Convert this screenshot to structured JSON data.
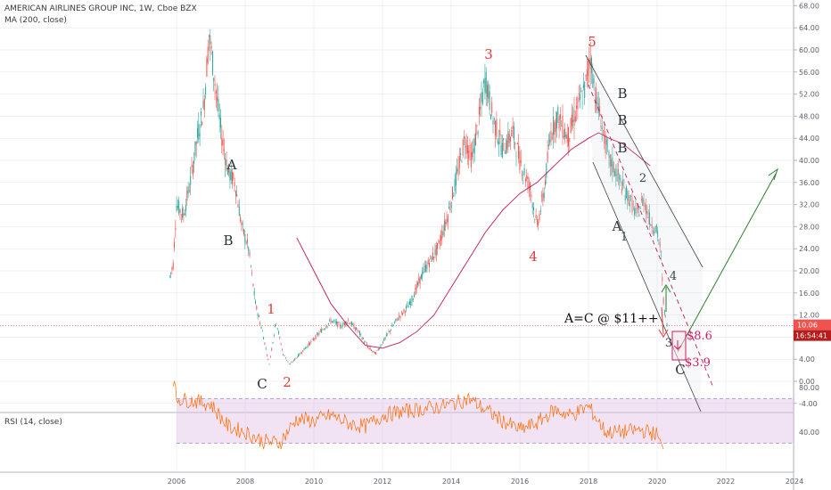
{
  "header": {
    "title": "AMERICAN AIRLINES GROUP INC, 1W, Cboe BZX",
    "indicator": "MA (200, close)",
    "rsi": "RSI (14, close)"
  },
  "price_tag": {
    "value": "10.06",
    "countdown": "16:54:41"
  },
  "colors": {
    "up": "#26a69a",
    "down": "#ef5350",
    "ma": "#c2185b",
    "rsi": "#ff6d00",
    "rsi_band": "#e1bee7",
    "wave_red": "#e53935",
    "wave_dark": "#263238",
    "projection": "#2e7d32",
    "target": "#d81b60",
    "grid": "#e0e3eb"
  },
  "chart_data": [
    {
      "type": "candlestick",
      "title": "AMERICAN AIRLINES GROUP INC, 1W, Cboe BZX",
      "x_ticks": [
        "2006",
        "2008",
        "2010",
        "2012",
        "2014",
        "2016",
        "2018",
        "2020",
        "2022",
        "2024"
      ],
      "y_ticks": [
        "68.00",
        "64.00",
        "60.00",
        "56.00",
        "52.00",
        "48.00",
        "44.00",
        "40.00",
        "36.00",
        "32.00",
        "28.00",
        "24.00",
        "20.00",
        "16.00",
        "12.00",
        "8.00",
        "4.00",
        "0.00",
        "-4.00"
      ],
      "ylim": [
        -6,
        70
      ],
      "price_path": [
        [
          2005.8,
          19
        ],
        [
          2005.9,
          21
        ],
        [
          2006.0,
          32
        ],
        [
          2006.2,
          30
        ],
        [
          2006.4,
          36
        ],
        [
          2006.6,
          44
        ],
        [
          2006.8,
          50
        ],
        [
          2006.95,
          63
        ],
        [
          2007.1,
          55
        ],
        [
          2007.3,
          45
        ],
        [
          2007.5,
          38
        ],
        [
          2007.7,
          36
        ],
        [
          2007.9,
          28
        ],
        [
          2008.1,
          24
        ],
        [
          2008.3,
          14
        ],
        [
          2008.5,
          9
        ],
        [
          2008.7,
          3
        ],
        [
          2008.8,
          7
        ],
        [
          2008.9,
          11
        ],
        [
          2009.1,
          5
        ],
        [
          2009.3,
          3
        ],
        [
          2009.6,
          5
        ],
        [
          2009.9,
          7
        ],
        [
          2010.2,
          9
        ],
        [
          2010.5,
          11
        ],
        [
          2010.8,
          10
        ],
        [
          2011.0,
          11
        ],
        [
          2011.3,
          9
        ],
        [
          2011.6,
          6
        ],
        [
          2011.8,
          5
        ],
        [
          2012.0,
          7
        ],
        [
          2012.4,
          11
        ],
        [
          2012.8,
          14
        ],
        [
          2013.2,
          20
        ],
        [
          2013.6,
          24
        ],
        [
          2013.9,
          30
        ],
        [
          2014.2,
          38
        ],
        [
          2014.4,
          44
        ],
        [
          2014.6,
          40
        ],
        [
          2014.8,
          47
        ],
        [
          2015.0,
          55
        ],
        [
          2015.2,
          48
        ],
        [
          2015.5,
          42
        ],
        [
          2015.8,
          45
        ],
        [
          2016.0,
          40
        ],
        [
          2016.3,
          35
        ],
        [
          2016.5,
          28
        ],
        [
          2016.7,
          34
        ],
        [
          2016.9,
          45
        ],
        [
          2017.1,
          48
        ],
        [
          2017.4,
          44
        ],
        [
          2017.7,
          50
        ],
        [
          2017.9,
          53
        ],
        [
          2018.05,
          59
        ],
        [
          2018.2,
          52
        ],
        [
          2018.4,
          46
        ],
        [
          2018.6,
          40
        ],
        [
          2018.8,
          38
        ],
        [
          2019.0,
          35
        ],
        [
          2019.2,
          33
        ],
        [
          2019.4,
          30
        ],
        [
          2019.6,
          33
        ],
        [
          2019.8,
          29
        ],
        [
          2020.0,
          27
        ],
        [
          2020.1,
          24
        ],
        [
          2020.2,
          13
        ],
        [
          2020.3,
          10
        ]
      ],
      "rsi_path": [
        [
          2005.9,
          88
        ],
        [
          2006.0,
          70
        ],
        [
          2006.5,
          68
        ],
        [
          2007.0,
          65
        ],
        [
          2007.5,
          45
        ],
        [
          2008.0,
          40
        ],
        [
          2008.5,
          32
        ],
        [
          2009.0,
          30
        ],
        [
          2009.5,
          52
        ],
        [
          2010.0,
          50
        ],
        [
          2010.5,
          55
        ],
        [
          2011.0,
          48
        ],
        [
          2011.5,
          45
        ],
        [
          2012.0,
          55
        ],
        [
          2012.5,
          58
        ],
        [
          2013.0,
          60
        ],
        [
          2013.5,
          62
        ],
        [
          2014.0,
          65
        ],
        [
          2014.5,
          70
        ],
        [
          2015.0,
          60
        ],
        [
          2015.5,
          50
        ],
        [
          2016.0,
          42
        ],
        [
          2016.5,
          48
        ],
        [
          2017.0,
          60
        ],
        [
          2017.5,
          55
        ],
        [
          2018.0,
          63
        ],
        [
          2018.5,
          40
        ],
        [
          2019.0,
          40
        ],
        [
          2019.5,
          42
        ],
        [
          2020.0,
          38
        ],
        [
          2020.2,
          20
        ]
      ],
      "ma_path": [
        [
          2009.5,
          26
        ],
        [
          2010.0,
          20
        ],
        [
          2010.5,
          14
        ],
        [
          2011.0,
          10
        ],
        [
          2011.5,
          6.5
        ],
        [
          2012.0,
          6
        ],
        [
          2012.5,
          7
        ],
        [
          2013.0,
          9
        ],
        [
          2013.5,
          12
        ],
        [
          2014.0,
          17
        ],
        [
          2014.5,
          22
        ],
        [
          2015.0,
          27
        ],
        [
          2015.5,
          31
        ],
        [
          2016.0,
          34
        ],
        [
          2016.5,
          36
        ],
        [
          2017.0,
          39
        ],
        [
          2017.5,
          42
        ],
        [
          2018.0,
          44
        ],
        [
          2018.3,
          45
        ],
        [
          2018.6,
          44
        ],
        [
          2019.0,
          43
        ],
        [
          2019.5,
          40.5
        ],
        [
          2019.8,
          39
        ]
      ]
    },
    {
      "type": "line",
      "title": "RSI (14, close)",
      "y_ticks": [
        "80.00",
        "40.00"
      ],
      "ylim": [
        14,
        98
      ]
    }
  ],
  "annotations": {
    "waves_red": [
      "1",
      "2",
      "3",
      "4",
      "5"
    ],
    "waves_dark": [
      "A",
      "B",
      "C",
      "A",
      "B",
      "B",
      "B",
      "C"
    ],
    "waves_teal": [
      "1",
      "2",
      "3",
      "4"
    ],
    "note": "A=C @ $11++",
    "targets": [
      "$8.6",
      "$3.9"
    ]
  }
}
